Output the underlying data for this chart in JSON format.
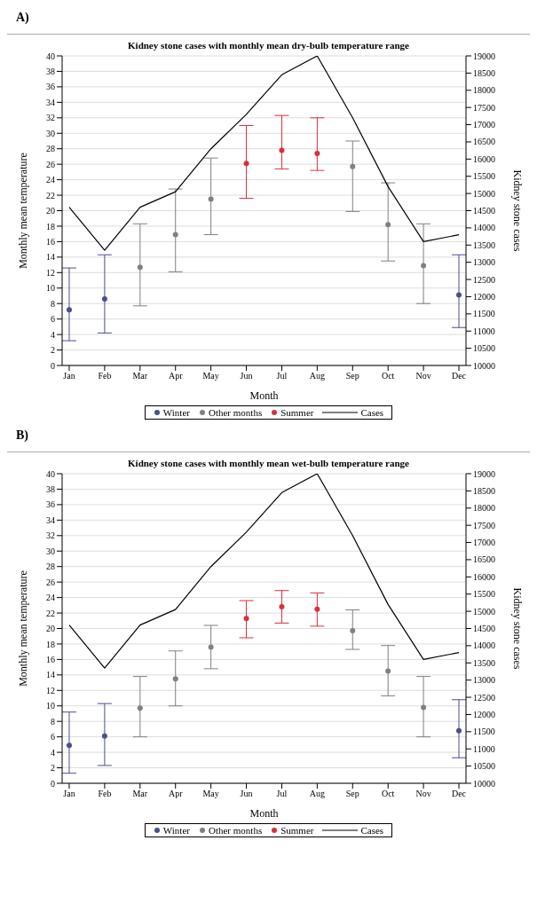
{
  "chart_data": [
    {
      "type": "scatter",
      "title": "Kidney stone cases with monthly mean dry-bulb temperature range",
      "xlabel": "Month",
      "ylabel": "Monthly mean temperature",
      "y2label": "Kidney stone cases",
      "annotations": [
        "A)"
      ],
      "categories": [
        "Jan",
        "Feb",
        "Mar",
        "Apr",
        "May",
        "Jun",
        "Jul",
        "Aug",
        "Sep",
        "Oct",
        "Nov",
        "Dec"
      ],
      "series": [
        {
          "name": "Winter",
          "color": "#4b4f8f",
          "values": [
            7.2,
            8.6,
            null,
            null,
            null,
            null,
            null,
            null,
            null,
            null,
            null,
            9.1
          ],
          "errors": [
            [
              3.2,
              12.6
            ],
            [
              4.2,
              14.3
            ],
            null,
            null,
            null,
            null,
            null,
            null,
            null,
            null,
            null,
            [
              4.9,
              14.3
            ]
          ]
        },
        {
          "name": "Other months",
          "color": "#808080",
          "values": [
            null,
            null,
            12.7,
            16.9,
            21.5,
            null,
            null,
            null,
            25.7,
            18.2,
            12.9,
            null
          ],
          "errors": [
            null,
            null,
            [
              7.7,
              18.3
            ],
            [
              12.1,
              22.8
            ],
            [
              16.9,
              26.8
            ],
            null,
            null,
            null,
            [
              19.9,
              29.0
            ],
            [
              13.5,
              23.6
            ],
            [
              8.0,
              18.3
            ],
            null
          ]
        },
        {
          "name": "Summer",
          "color": "#d9303a",
          "values": [
            null,
            null,
            null,
            null,
            null,
            26.1,
            27.8,
            27.4,
            null,
            null,
            null,
            null
          ],
          "errors": [
            null,
            null,
            null,
            null,
            null,
            [
              21.6,
              31.0
            ],
            [
              25.4,
              32.3
            ],
            [
              25.2,
              32.0
            ],
            null,
            null,
            null,
            null
          ]
        },
        {
          "name": "Cases",
          "type": "line",
          "axis": "y2",
          "color": "#000000",
          "line_style": "solid",
          "marker": "none",
          "values": [
            14600,
            13350,
            14600,
            15050,
            16300,
            17300,
            18450,
            19000,
            17200,
            15200,
            13600,
            13800
          ]
        }
      ],
      "ylim": [
        0,
        40
      ],
      "yticks": [
        0,
        2,
        4,
        6,
        8,
        10,
        12,
        14,
        16,
        18,
        20,
        22,
        24,
        26,
        28,
        30,
        32,
        34,
        36,
        38,
        40
      ],
      "y2lim": [
        10000,
        19000
      ],
      "y2ticks": [
        10000,
        10500,
        11000,
        11500,
        12000,
        12500,
        13000,
        13500,
        14000,
        14500,
        15000,
        15500,
        16000,
        16500,
        17000,
        17500,
        18000,
        18500,
        19000
      ],
      "grid": "y",
      "legend": "bottom",
      "marker": "circle"
    },
    {
      "type": "scatter",
      "title": "Kidney stone cases with monthly mean wet-bulb temperature range",
      "xlabel": "Month",
      "ylabel": "Monthly mean temperature",
      "y2label": "Kidney stone cases",
      "annotations": [
        "B)"
      ],
      "categories": [
        "Jan",
        "Feb",
        "Mar",
        "Apr",
        "May",
        "Jun",
        "Jul",
        "Aug",
        "Sep",
        "Oct",
        "Nov",
        "Dec"
      ],
      "series": [
        {
          "name": "Winter",
          "color": "#4b4f8f",
          "values": [
            4.9,
            6.1,
            null,
            null,
            null,
            null,
            null,
            null,
            null,
            null,
            null,
            6.8
          ],
          "errors": [
            [
              1.3,
              9.2
            ],
            [
              2.3,
              10.3
            ],
            null,
            null,
            null,
            null,
            null,
            null,
            null,
            null,
            null,
            [
              3.3,
              10.8
            ]
          ]
        },
        {
          "name": "Other months",
          "color": "#808080",
          "values": [
            null,
            null,
            9.7,
            13.5,
            17.6,
            null,
            null,
            null,
            19.7,
            14.5,
            9.8,
            null
          ],
          "errors": [
            null,
            null,
            [
              6.0,
              13.8
            ],
            [
              10.0,
              17.1
            ],
            [
              14.8,
              20.4
            ],
            null,
            null,
            null,
            [
              17.3,
              22.4
            ],
            [
              11.3,
              17.8
            ],
            [
              6.0,
              13.8
            ],
            null
          ]
        },
        {
          "name": "Summer",
          "color": "#d9303a",
          "values": [
            null,
            null,
            null,
            null,
            null,
            21.3,
            22.8,
            22.5,
            null,
            null,
            null,
            null
          ],
          "errors": [
            null,
            null,
            null,
            null,
            null,
            [
              18.8,
              23.6
            ],
            [
              20.7,
              24.9
            ],
            [
              20.3,
              24.6
            ],
            null,
            null,
            null,
            null
          ]
        },
        {
          "name": "Cases",
          "type": "line",
          "axis": "y2",
          "color": "#000000",
          "line_style": "solid",
          "marker": "none",
          "values": [
            14600,
            13350,
            14600,
            15050,
            16300,
            17300,
            18450,
            19000,
            17200,
            15200,
            13600,
            13800
          ]
        }
      ],
      "ylim": [
        0,
        40
      ],
      "yticks": [
        0,
        2,
        4,
        6,
        8,
        10,
        12,
        14,
        16,
        18,
        20,
        22,
        24,
        26,
        28,
        30,
        32,
        34,
        36,
        38,
        40
      ],
      "y2lim": [
        10000,
        19000
      ],
      "y2ticks": [
        10000,
        10500,
        11000,
        11500,
        12000,
        12500,
        13000,
        13500,
        14000,
        14500,
        15000,
        15500,
        16000,
        16500,
        17000,
        17500,
        18000,
        18500,
        19000
      ],
      "grid": "y",
      "legend": "bottom",
      "marker": "circle"
    }
  ]
}
